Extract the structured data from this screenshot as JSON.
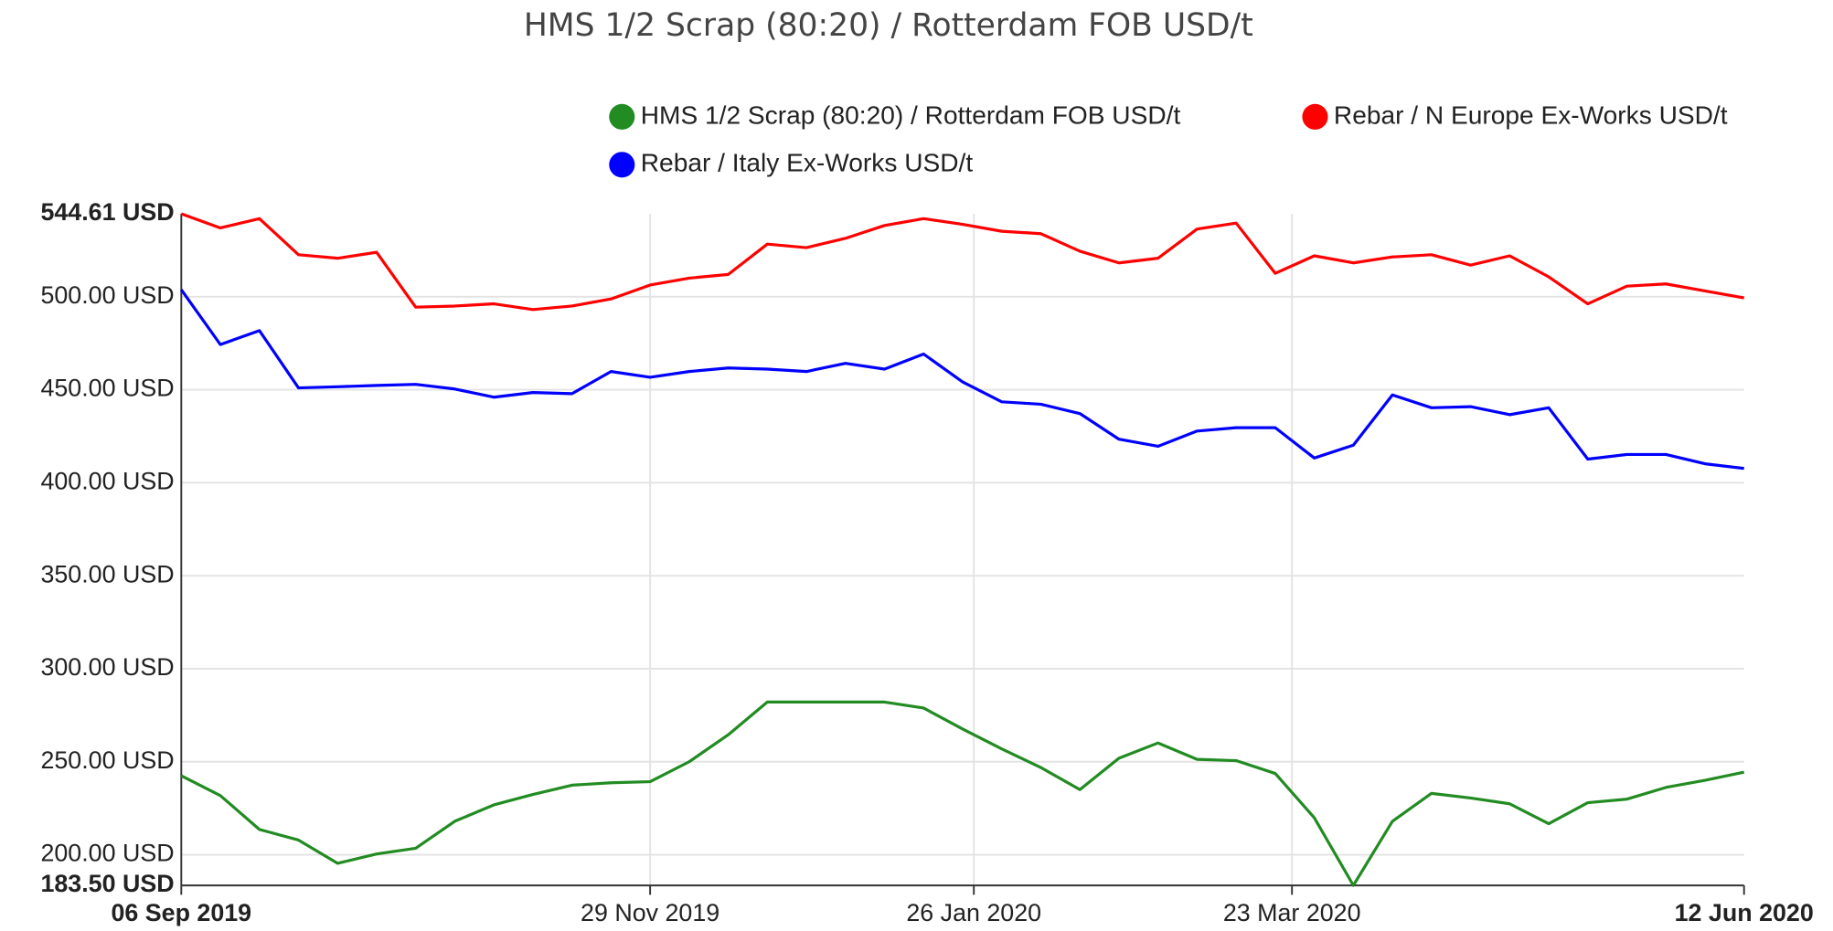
{
  "chart_data": {
    "type": "line",
    "title": "HMS 1/2 Scrap (80:20) / Rotterdam FOB USD/t",
    "x": [
      "2019-09-06",
      "2019-09-13",
      "2019-09-20",
      "2019-09-27",
      "2019-10-04",
      "2019-10-11",
      "2019-10-18",
      "2019-10-25",
      "2019-11-01",
      "2019-11-08",
      "2019-11-15",
      "2019-11-22",
      "2019-11-29",
      "2019-12-06",
      "2019-12-13",
      "2019-12-20",
      "2019-12-27",
      "2020-01-03",
      "2020-01-10",
      "2020-01-17",
      "2020-01-24",
      "2020-01-31",
      "2020-02-07",
      "2020-02-14",
      "2020-02-21",
      "2020-02-28",
      "2020-03-06",
      "2020-03-13",
      "2020-03-20",
      "2020-03-27",
      "2020-04-03",
      "2020-04-10",
      "2020-04-17",
      "2020-04-24",
      "2020-05-01",
      "2020-05-08",
      "2020-05-15",
      "2020-05-22",
      "2020-05-29",
      "2020-06-05",
      "2020-06-12"
    ],
    "series": [
      {
        "name": "HMS 1/2 Scrap (80:20) / Rotterdam FOB USD/t",
        "color": "#228b22",
        "values": [
          242.5,
          231.8,
          213.6,
          207.9,
          195.4,
          200.4,
          203.5,
          218,
          226.8,
          232.4,
          237.4,
          238.7,
          239.3,
          250,
          264.5,
          282.1,
          282.1,
          282.1,
          282.1,
          278.9,
          267.6,
          256.9,
          246.9,
          235,
          251.9,
          260.1,
          251.3,
          250.6,
          243.7,
          219.9,
          183.5,
          218,
          233,
          230.5,
          227.4,
          216.7,
          228,
          229.9,
          236.2,
          240,
          244.4
        ]
      },
      {
        "name": "Rebar / N Europe Ex-Works USD/t",
        "color": "#ff0000",
        "values": [
          544.6,
          537,
          542,
          522.6,
          520.7,
          523.9,
          494.4,
          495,
          496.2,
          493.1,
          495,
          498.8,
          506.3,
          510,
          512,
          528.3,
          526.4,
          531.4,
          538.3,
          542,
          538.9,
          535.2,
          533.9,
          524.5,
          518.2,
          520.7,
          536.4,
          539.6,
          512.6,
          522,
          518.2,
          521.4,
          522.6,
          517,
          522,
          510.7,
          496.2,
          505.7,
          506.9,
          503.1,
          499.4
        ]
      },
      {
        "name": "Rebar / Italy Ex-Works USD/t",
        "color": "#0000ff",
        "values": [
          503.8,
          474.3,
          481.8,
          451,
          451.6,
          452.3,
          452.9,
          450.4,
          446,
          448.5,
          447.9,
          459.8,
          456.7,
          459.8,
          461.7,
          461.1,
          459.8,
          464.2,
          461.1,
          469.2,
          454.2,
          443.5,
          442.2,
          437.2,
          423.4,
          419.6,
          427.8,
          429.6,
          429.6,
          413.3,
          420.2,
          447.2,
          440.3,
          440.9,
          436.6,
          440.3,
          412.7,
          415.2,
          415.2,
          410.2,
          407.7
        ]
      }
    ],
    "xlim": [
      "2019-09-06",
      "2020-06-12"
    ],
    "xticks": [
      {
        "value": "2019-09-06",
        "label": "06 Sep 2019"
      },
      {
        "value": "2019-11-29",
        "label": "29 Nov 2019"
      },
      {
        "value": "2020-01-26",
        "label": "26 Jan 2020"
      },
      {
        "value": "2020-03-23",
        "label": "23 Mar 2020"
      },
      {
        "value": "2020-06-12",
        "label": "12 Jun 2020"
      }
    ],
    "ylim": [
      183.5,
      544.61
    ],
    "yticks": [
      {
        "value": 544.61,
        "label": "544.61 USD"
      },
      {
        "value": 500,
        "label": "500.00 USD"
      },
      {
        "value": 450,
        "label": "450.00 USD"
      },
      {
        "value": 400,
        "label": "400.00 USD"
      },
      {
        "value": 350,
        "label": "350.00 USD"
      },
      {
        "value": 300,
        "label": "300.00 USD"
      },
      {
        "value": 250,
        "label": "250.00 USD"
      },
      {
        "value": 200,
        "label": "200.00 USD"
      },
      {
        "value": 183.5,
        "label": "183.50 USD"
      }
    ],
    "grid": true
  }
}
